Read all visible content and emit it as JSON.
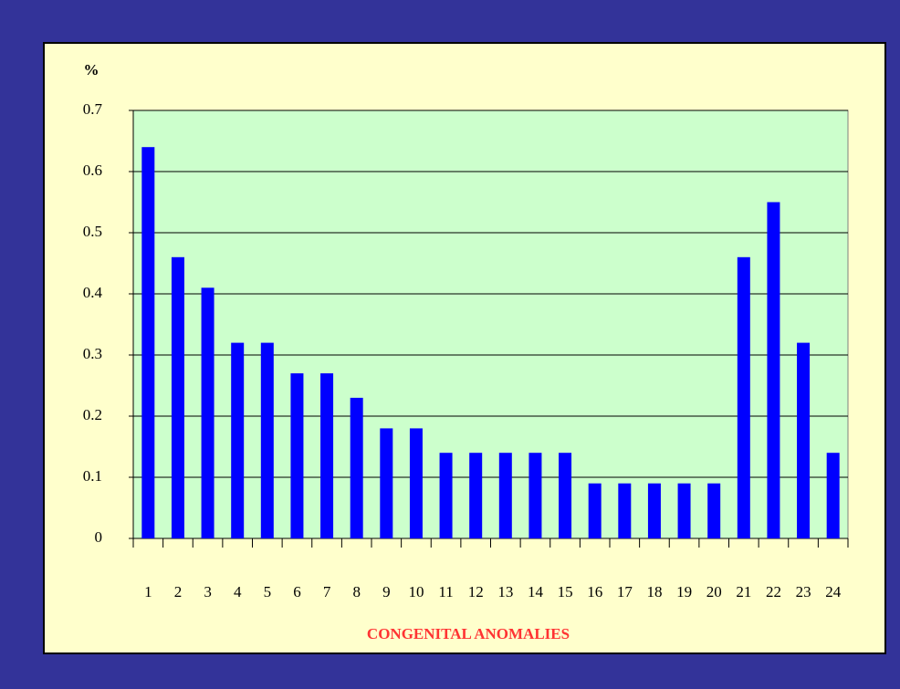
{
  "chart_data": {
    "type": "bar",
    "ylabel": "%",
    "xlabel": "CONGENITAL  ANOMALIES",
    "categories": [
      "1",
      "2",
      "3",
      "4",
      "5",
      "6",
      "7",
      "8",
      "9",
      "10",
      "11",
      "12",
      "13",
      "14",
      "15",
      "16",
      "17",
      "18",
      "19",
      "20",
      "21",
      "22",
      "23",
      "24"
    ],
    "values": [
      0.64,
      0.46,
      0.41,
      0.32,
      0.32,
      0.27,
      0.27,
      0.23,
      0.18,
      0.18,
      0.14,
      0.14,
      0.14,
      0.14,
      0.14,
      0.09,
      0.09,
      0.09,
      0.09,
      0.09,
      0.46,
      0.55,
      0.32,
      0.14
    ],
    "color": "#0000ff",
    "ylim": [
      0,
      0.7
    ],
    "yticks": [
      0,
      0.1,
      0.2,
      0.3,
      0.4,
      0.5,
      0.6,
      0.7
    ],
    "grid": true
  }
}
